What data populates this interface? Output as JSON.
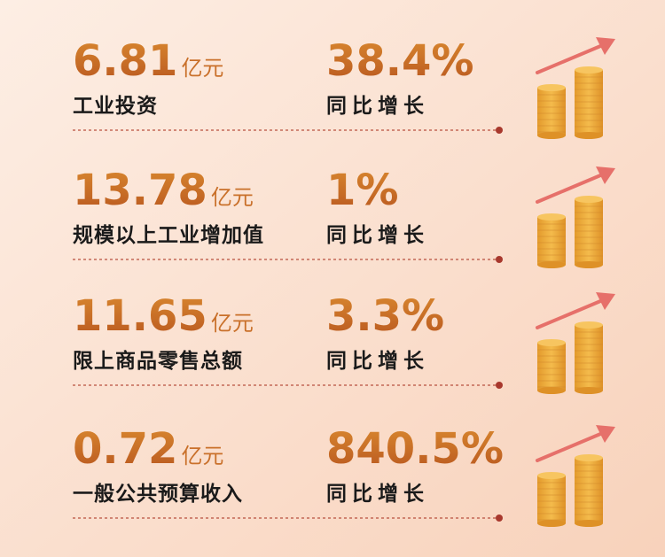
{
  "items": [
    {
      "value": "6.81",
      "unit": "亿元",
      "label": "工业投资",
      "growth": "38.4%",
      "growth_label": "同比增长"
    },
    {
      "value": "13.78",
      "unit": "亿元",
      "label": "规模以上工业增加值",
      "growth": "1%",
      "growth_label": "同比增长"
    },
    {
      "value": "11.65",
      "unit": "亿元",
      "label": "限上商品零售总额",
      "growth": "3.3%",
      "growth_label": "同比增长"
    },
    {
      "value": "0.72",
      "unit": "亿元",
      "label": "一般公共预算收入",
      "growth": "840.5%",
      "growth_label": "同比增长"
    }
  ]
}
